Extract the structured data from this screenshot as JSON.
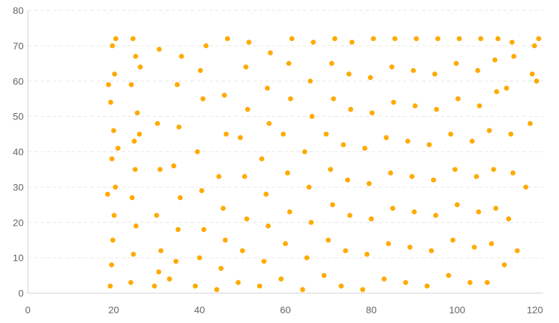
{
  "chart_data": {
    "type": "scatter",
    "title": "",
    "xlabel": "",
    "ylabel": "",
    "xlim": [
      0,
      120
    ],
    "ylim": [
      0,
      80
    ],
    "x_ticks": [
      0,
      20,
      40,
      60,
      80,
      100,
      120
    ],
    "y_ticks": [
      0,
      10,
      20,
      30,
      40,
      50,
      60,
      70,
      80
    ],
    "grid": "horizontal-dashed",
    "legend": "none",
    "point_color": "#FFAA00",
    "series": [
      {
        "points": [
          [
            19.2,
            2
          ],
          [
            19.5,
            8
          ],
          [
            19.8,
            15
          ],
          [
            20.1,
            22
          ],
          [
            20.4,
            30
          ],
          [
            19.6,
            38
          ],
          [
            20.0,
            46
          ],
          [
            19.3,
            54
          ],
          [
            20.2,
            62
          ],
          [
            19.7,
            70
          ],
          [
            20.5,
            72
          ],
          [
            18.8,
            59
          ],
          [
            18.6,
            28
          ],
          [
            21.0,
            41
          ],
          [
            24.0,
            3
          ],
          [
            24.6,
            11
          ],
          [
            25.2,
            19
          ],
          [
            24.3,
            27
          ],
          [
            25.0,
            35
          ],
          [
            24.8,
            43
          ],
          [
            25.5,
            51
          ],
          [
            24.1,
            59
          ],
          [
            25.1,
            67
          ],
          [
            24.5,
            72
          ],
          [
            26.0,
            45
          ],
          [
            26.2,
            64
          ],
          [
            29.5,
            2
          ],
          [
            30.5,
            6
          ],
          [
            31.0,
            12
          ],
          [
            30.0,
            22
          ],
          [
            30.8,
            35
          ],
          [
            30.2,
            48
          ],
          [
            30.6,
            69
          ],
          [
            33.0,
            4
          ],
          [
            34.5,
            9
          ],
          [
            35.0,
            18
          ],
          [
            35.5,
            27
          ],
          [
            34.0,
            36
          ],
          [
            35.2,
            47
          ],
          [
            34.8,
            59
          ],
          [
            35.8,
            67
          ],
          [
            39.0,
            2
          ],
          [
            40.0,
            10
          ],
          [
            41.0,
            18
          ],
          [
            40.5,
            29
          ],
          [
            39.5,
            40
          ],
          [
            40.8,
            55
          ],
          [
            40.2,
            63
          ],
          [
            41.5,
            70
          ],
          [
            44.0,
            1
          ],
          [
            45.0,
            7
          ],
          [
            46.0,
            15
          ],
          [
            45.5,
            24
          ],
          [
            44.5,
            33
          ],
          [
            46.2,
            45
          ],
          [
            45.8,
            56
          ],
          [
            46.5,
            72
          ],
          [
            49.0,
            3
          ],
          [
            50.0,
            12
          ],
          [
            51.0,
            21
          ],
          [
            50.5,
            33
          ],
          [
            49.5,
            44
          ],
          [
            51.2,
            52
          ],
          [
            50.8,
            64
          ],
          [
            51.5,
            71
          ],
          [
            54.0,
            2
          ],
          [
            55.0,
            9
          ],
          [
            56.0,
            19
          ],
          [
            55.5,
            28
          ],
          [
            54.5,
            38
          ],
          [
            56.2,
            48
          ],
          [
            55.8,
            58
          ],
          [
            56.5,
            68
          ],
          [
            59.0,
            4
          ],
          [
            60.0,
            14
          ],
          [
            61.0,
            23
          ],
          [
            60.5,
            34
          ],
          [
            59.5,
            45
          ],
          [
            61.2,
            55
          ],
          [
            60.8,
            65
          ],
          [
            61.5,
            72
          ],
          [
            64.0,
            1
          ],
          [
            65.0,
            10
          ],
          [
            66.0,
            20
          ],
          [
            65.5,
            30
          ],
          [
            64.5,
            40
          ],
          [
            66.2,
            50
          ],
          [
            65.8,
            60
          ],
          [
            66.5,
            71
          ],
          [
            69.0,
            5
          ],
          [
            70.0,
            15
          ],
          [
            71.0,
            25
          ],
          [
            70.5,
            35
          ],
          [
            69.5,
            45
          ],
          [
            71.2,
            55
          ],
          [
            70.8,
            65
          ],
          [
            71.5,
            72
          ],
          [
            73.0,
            2
          ],
          [
            74.0,
            12
          ],
          [
            75.0,
            22
          ],
          [
            74.5,
            32
          ],
          [
            73.5,
            42
          ],
          [
            75.2,
            52
          ],
          [
            74.8,
            62
          ],
          [
            75.5,
            71
          ],
          [
            78.0,
            1
          ],
          [
            79.0,
            11
          ],
          [
            80.0,
            21
          ],
          [
            79.5,
            31
          ],
          [
            78.5,
            41
          ],
          [
            80.2,
            51
          ],
          [
            79.8,
            61
          ],
          [
            80.5,
            72
          ],
          [
            83.0,
            4
          ],
          [
            84.0,
            14
          ],
          [
            85.0,
            24
          ],
          [
            84.5,
            34
          ],
          [
            83.5,
            44
          ],
          [
            85.2,
            54
          ],
          [
            84.8,
            64
          ],
          [
            85.5,
            72
          ],
          [
            88.0,
            3
          ],
          [
            89.0,
            13
          ],
          [
            90.0,
            23
          ],
          [
            89.5,
            33
          ],
          [
            88.5,
            43
          ],
          [
            90.2,
            53
          ],
          [
            89.8,
            63
          ],
          [
            90.5,
            72
          ],
          [
            93.0,
            2
          ],
          [
            94.0,
            12
          ],
          [
            95.0,
            22
          ],
          [
            94.5,
            32
          ],
          [
            93.5,
            42
          ],
          [
            95.2,
            52
          ],
          [
            94.8,
            62
          ],
          [
            95.5,
            72
          ],
          [
            98.0,
            5
          ],
          [
            99.0,
            15
          ],
          [
            100.0,
            25
          ],
          [
            99.5,
            35
          ],
          [
            98.5,
            45
          ],
          [
            100.2,
            55
          ],
          [
            99.8,
            65
          ],
          [
            100.5,
            72
          ],
          [
            103.0,
            3
          ],
          [
            104.0,
            13
          ],
          [
            105.0,
            23
          ],
          [
            104.5,
            33
          ],
          [
            103.5,
            43
          ],
          [
            105.2,
            53
          ],
          [
            104.8,
            63
          ],
          [
            105.5,
            72
          ],
          [
            107.0,
            3
          ],
          [
            108.0,
            14
          ],
          [
            109.0,
            24
          ],
          [
            108.5,
            35
          ],
          [
            107.5,
            46
          ],
          [
            109.2,
            57
          ],
          [
            108.8,
            66
          ],
          [
            109.5,
            72
          ],
          [
            111.0,
            8
          ],
          [
            112.0,
            21
          ],
          [
            113.0,
            34
          ],
          [
            112.5,
            45
          ],
          [
            111.5,
            58
          ],
          [
            113.2,
            67
          ],
          [
            112.8,
            71
          ],
          [
            114.0,
            12
          ],
          [
            116.0,
            30
          ],
          [
            117.0,
            48
          ],
          [
            117.5,
            62
          ],
          [
            118.0,
            70
          ],
          [
            119.0,
            72
          ],
          [
            118.5,
            60
          ]
        ]
      }
    ]
  }
}
